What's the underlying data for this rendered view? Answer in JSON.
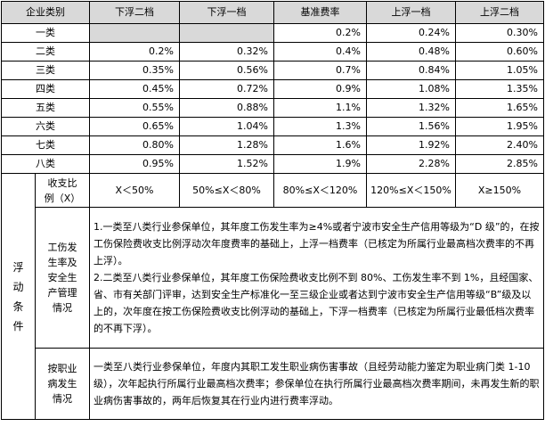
{
  "headers": [
    "企业类别",
    "下浮二档",
    "下浮一档",
    "基准费率",
    "上浮一档",
    "上浮二档"
  ],
  "rows": [
    {
      "cat": "一类",
      "v": [
        "",
        "",
        "0.2%",
        "0.24%",
        "0.30%"
      ]
    },
    {
      "cat": "二类",
      "v": [
        "0.2%",
        "0.32%",
        "0.4%",
        "0.48%",
        "0.60%"
      ]
    },
    {
      "cat": "三类",
      "v": [
        "0.35%",
        "0.56%",
        "0.7%",
        "0.84%",
        "1.05%"
      ]
    },
    {
      "cat": "四类",
      "v": [
        "0.45%",
        "0.72%",
        "0.9%",
        "1.08%",
        "1.35%"
      ]
    },
    {
      "cat": "五类",
      "v": [
        "0.55%",
        "0.88%",
        "1.1%",
        "1.32%",
        "1.65%"
      ]
    },
    {
      "cat": "六类",
      "v": [
        "0.65%",
        "1.04%",
        "1.3%",
        "1.56%",
        "1.95%"
      ]
    },
    {
      "cat": "七类",
      "v": [
        "0.80%",
        "1.28%",
        "1.6%",
        "1.92%",
        "2.40%"
      ]
    },
    {
      "cat": "八类",
      "v": [
        "0.95%",
        "1.52%",
        "1.9%",
        "2.28%",
        "2.85%"
      ]
    }
  ],
  "float": {
    "label_chars": [
      "浮",
      "动",
      "条",
      "件"
    ],
    "ratio": {
      "label_lines": [
        "收支比",
        "例（X）"
      ],
      "cells": [
        "X＜50%",
        "50%≤X＜80%",
        "80%≤X＜120%",
        "120%≤X＜150%",
        "X≥150%"
      ]
    },
    "safety": {
      "label_lines": [
        "工伤发",
        "生率及",
        "安全生",
        "产管理",
        "情况"
      ],
      "p1": "1.一类至八类行业参保单位，其年度工伤发生率为≥4%或者宁波市安全生产信用等级为“D 级”的，在按工伤保险费收支比例浮动次年度费率的基础上，上浮一档费率（已核定为所属行业最高档次费率的不再上浮）。",
      "p2": "2.二类至八类行业参保单位，其年度工伤保险费收支比例不到 80%、工伤发生率不到 1%，且经国家、省、市有关部门评审，达到安全生产标准化一至三级企业或者达到宁波市安全生产信用等级“B”级及以上的，次年度在按工伤保险费收支比例浮动的基础上，下浮一档费率（已核定为所属行业最低档次费率的不再下浮）。"
    },
    "disease": {
      "label_lines": [
        "按职业",
        "病发生",
        "情况"
      ],
      "text": "一类至八类行业参保单位，年度内其职工发生职业病伤害事故（且经劳动能力鉴定为职业病门类 1-10 级），次年起执行所属行业最高档次费率；参保单位在执行所属行业最高档次费率期间，未再发生新的职业病伤害事故的，两年后恢复其在行业内进行费率浮动。"
    }
  }
}
